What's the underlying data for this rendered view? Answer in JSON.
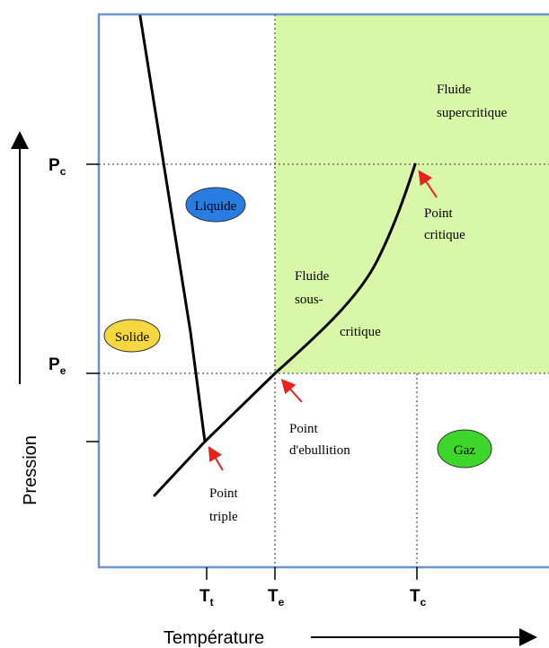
{
  "axes": {
    "x_title": "Température",
    "y_title": "Pression",
    "x_ticks": [
      {
        "main": "T",
        "sub": "t"
      },
      {
        "main": "T",
        "sub": "e"
      },
      {
        "main": "T",
        "sub": "c"
      }
    ],
    "y_ticks": [
      {
        "main": "P",
        "sub": "c"
      },
      {
        "main": "P",
        "sub": "e"
      }
    ]
  },
  "phases": {
    "solide": "Solide",
    "liquide": "Liquide",
    "gaz": "Gaz"
  },
  "regions": {
    "supercritical_line1": "Fluide",
    "supercritical_line2": "supercritique",
    "subcritical_line1": "Fluide",
    "subcritical_line2": "sous-",
    "subcritical_line3": "critique"
  },
  "points": {
    "critical_line1": "Point",
    "critical_line2": "critique",
    "boiling_line1": "Point",
    "boiling_line2": "d'ebullition",
    "triple_line1": "Point",
    "triple_line2": "triple"
  },
  "colors": {
    "frame": "#6a93c6",
    "supercritical_region": "#d9f7a8",
    "solide": "#f5d742",
    "liquide": "#2a7de0",
    "gaz": "#3fd62c",
    "arrow": "#e8211a"
  }
}
